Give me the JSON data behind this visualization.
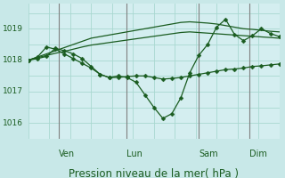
{
  "background_color": "#c8e8e8",
  "plot_bg_color": "#d4eef0",
  "grid_color": "#a8d8d0",
  "line_color": "#1a5c20",
  "marker_color": "#1a5c20",
  "xlabel": "Pression niveau de la mer( hPa )",
  "xlabel_color": "#1a5c20",
  "xlabel_fontsize": 8.5,
  "ytick_color": "#1a5c20",
  "xtick_color": "#1a5c20",
  "ylim": [
    1015.5,
    1019.8
  ],
  "yticks": [
    1016,
    1017,
    1018,
    1019
  ],
  "vline_color": "#808080",
  "vline_positions": [
    0.12,
    0.39,
    0.68,
    0.88
  ],
  "xtick_labels_x": [
    0.12,
    0.39,
    0.68,
    0.88
  ],
  "xtick_labels": [
    "Ven",
    "Lun",
    "Sam",
    "Dim"
  ],
  "n_points": 29,
  "series_smooth": [
    1018.0,
    1018.1,
    1018.2,
    1018.3,
    1018.4,
    1018.5,
    1018.6,
    1018.7,
    1018.75,
    1018.8,
    1018.85,
    1018.9,
    1018.95,
    1019.0,
    1019.05,
    1019.1,
    1019.15,
    1019.2,
    1019.22,
    1019.2,
    1019.18,
    1019.15,
    1019.1,
    1019.05,
    1019.0,
    1018.98,
    1018.95,
    1018.92,
    1018.9
  ],
  "series_smooth2": [
    1018.0,
    1018.08,
    1018.15,
    1018.22,
    1018.28,
    1018.35,
    1018.42,
    1018.48,
    1018.52,
    1018.56,
    1018.6,
    1018.64,
    1018.68,
    1018.72,
    1018.76,
    1018.8,
    1018.84,
    1018.88,
    1018.9,
    1018.88,
    1018.86,
    1018.84,
    1018.82,
    1018.8,
    1018.78,
    1018.76,
    1018.74,
    1018.72,
    1018.7
  ],
  "series_zigzag": [
    1018.0,
    1018.05,
    1018.12,
    1018.38,
    1018.3,
    1018.2,
    1018.05,
    1017.8,
    1017.55,
    1017.45,
    1017.5,
    1017.45,
    1017.3,
    1016.9,
    1016.5,
    1016.15,
    1016.3,
    1016.8,
    1017.6,
    1018.15,
    1018.5,
    1019.05,
    1019.3,
    1018.82,
    1018.62,
    1018.78,
    1019.0,
    1018.85,
    1018.75
  ],
  "series_zigzag2": [
    1018.0,
    1018.1,
    1018.42,
    1018.35,
    1018.2,
    1018.05,
    1017.9,
    1017.75,
    1017.55,
    1017.45,
    1017.45,
    1017.48,
    1017.5,
    1017.5,
    1017.45,
    1017.4,
    1017.42,
    1017.45,
    1017.5,
    1017.55,
    1017.6,
    1017.65,
    1017.7,
    1017.72,
    1017.75,
    1017.8,
    1017.82,
    1017.85,
    1017.88
  ]
}
